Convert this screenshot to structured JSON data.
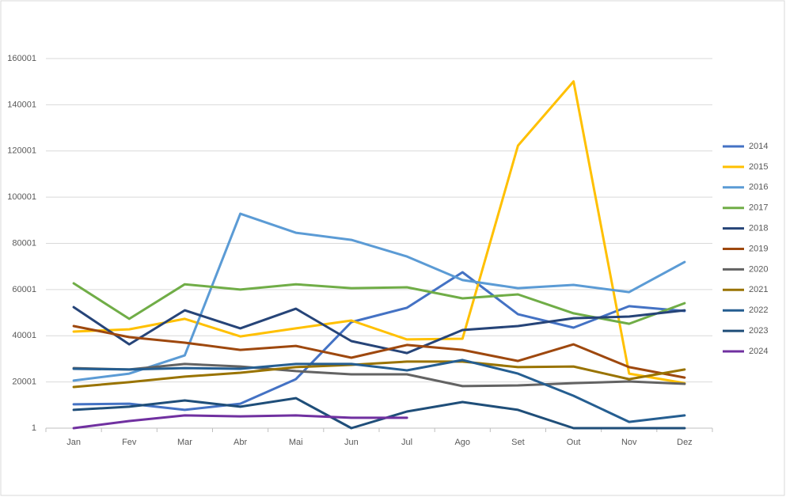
{
  "chart_data": {
    "type": "line",
    "categories": [
      "Jan",
      "Fev",
      "Mar",
      "Abr",
      "Mai",
      "Jun",
      "Jul",
      "Ago",
      "Set",
      "Out",
      "Nov",
      "Dez"
    ],
    "ylim": [
      1,
      160001
    ],
    "yticks": [
      1,
      20001,
      40001,
      60001,
      80001,
      100001,
      120001,
      140001,
      160001
    ],
    "grid": true,
    "legend": "right",
    "series": [
      {
        "name": "2014",
        "color": "#4472c4",
        "values": [
          10300,
          10600,
          7900,
          10600,
          21200,
          45900,
          52100,
          67500,
          49300,
          43500,
          52800,
          50700
        ]
      },
      {
        "name": "2015",
        "color": "#ffc000",
        "values": [
          41800,
          42800,
          47300,
          39700,
          43200,
          46600,
          38400,
          38700,
          122300,
          150100,
          23600,
          19500
        ]
      },
      {
        "name": "2016",
        "color": "#5b9bd5",
        "values": [
          20600,
          23600,
          31500,
          92800,
          84600,
          81500,
          74300,
          64100,
          60600,
          62000,
          58900,
          71900
        ]
      },
      {
        "name": "2017",
        "color": "#70ad47",
        "values": [
          62700,
          47300,
          62300,
          60000,
          62300,
          60600,
          61000,
          56200,
          57900,
          49700,
          45200,
          54100
        ]
      },
      {
        "name": "2018",
        "color": "#264478",
        "values": [
          52400,
          36300,
          51000,
          43200,
          51700,
          37700,
          32500,
          42500,
          44200,
          47600,
          48300,
          51000
        ]
      },
      {
        "name": "2019",
        "color": "#9e480e",
        "values": [
          44200,
          39400,
          37000,
          33900,
          35600,
          30500,
          36000,
          33900,
          29100,
          36300,
          26400,
          21900
        ]
      },
      {
        "name": "2020",
        "color": "#636363",
        "values": [
          26000,
          25400,
          27800,
          26700,
          24700,
          23300,
          23300,
          18200,
          18500,
          19500,
          20200,
          19200
        ]
      },
      {
        "name": "2021",
        "color": "#997300",
        "values": [
          17800,
          19900,
          22300,
          24000,
          26400,
          27400,
          28800,
          28800,
          26400,
          26700,
          21200,
          25400
        ]
      },
      {
        "name": "2022",
        "color": "#255e91",
        "values": [
          25700,
          25400,
          26000,
          25700,
          27800,
          27800,
          25000,
          29500,
          23600,
          14000,
          2700,
          5500
        ]
      },
      {
        "name": "2023",
        "color": "#1f4e79",
        "values": [
          7900,
          9300,
          12000,
          9300,
          13000,
          1,
          7200,
          11300,
          7900,
          1,
          1,
          1
        ]
      },
      {
        "name": "2024",
        "color": "#7030a0",
        "values": [
          1,
          3100,
          5500,
          5100,
          5500,
          4500,
          4500,
          null,
          null,
          null,
          null,
          null
        ]
      }
    ]
  }
}
